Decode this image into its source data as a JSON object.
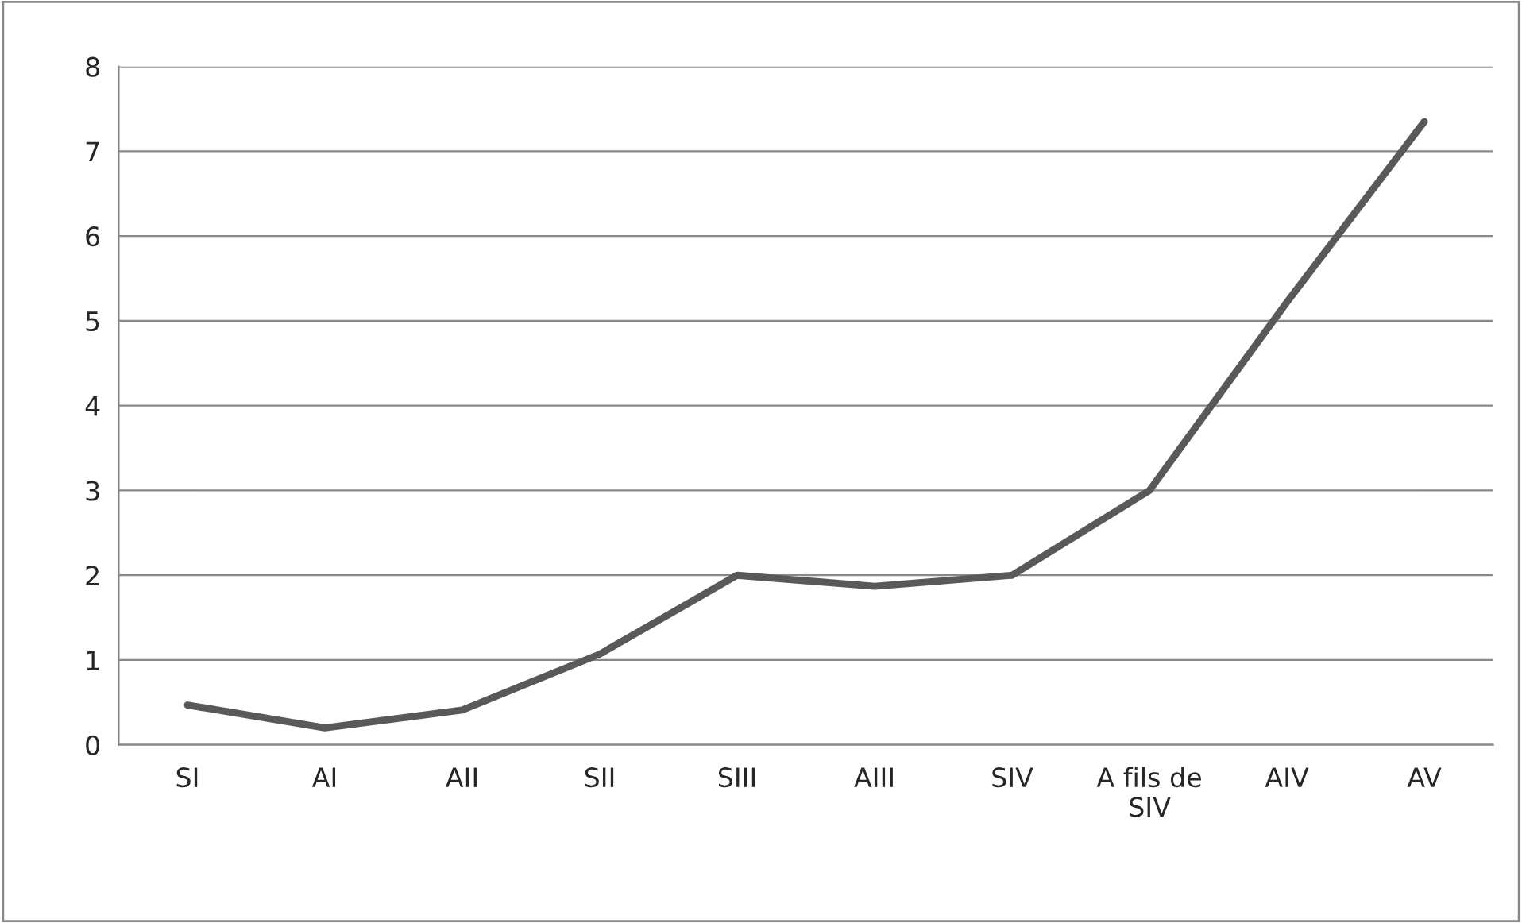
{
  "chart_data": {
    "type": "line",
    "categories": [
      "SI",
      "AI",
      "AII",
      "SII",
      "SIII",
      "AIII",
      "SIV",
      "A fils de SIV",
      "AIV",
      "AV"
    ],
    "series": [
      {
        "color": "#595959",
        "values": [
          0.47,
          0.2,
          0.41,
          1.07,
          2.0,
          1.87,
          2.0,
          3.0,
          5.22,
          7.35
        ]
      }
    ],
    "ylim": [
      0,
      8
    ],
    "yticks": [
      0,
      1,
      2,
      3,
      4,
      5,
      6,
      7,
      8
    ],
    "grid": "y",
    "legend": false,
    "marker": "none",
    "line_style": "solid"
  }
}
